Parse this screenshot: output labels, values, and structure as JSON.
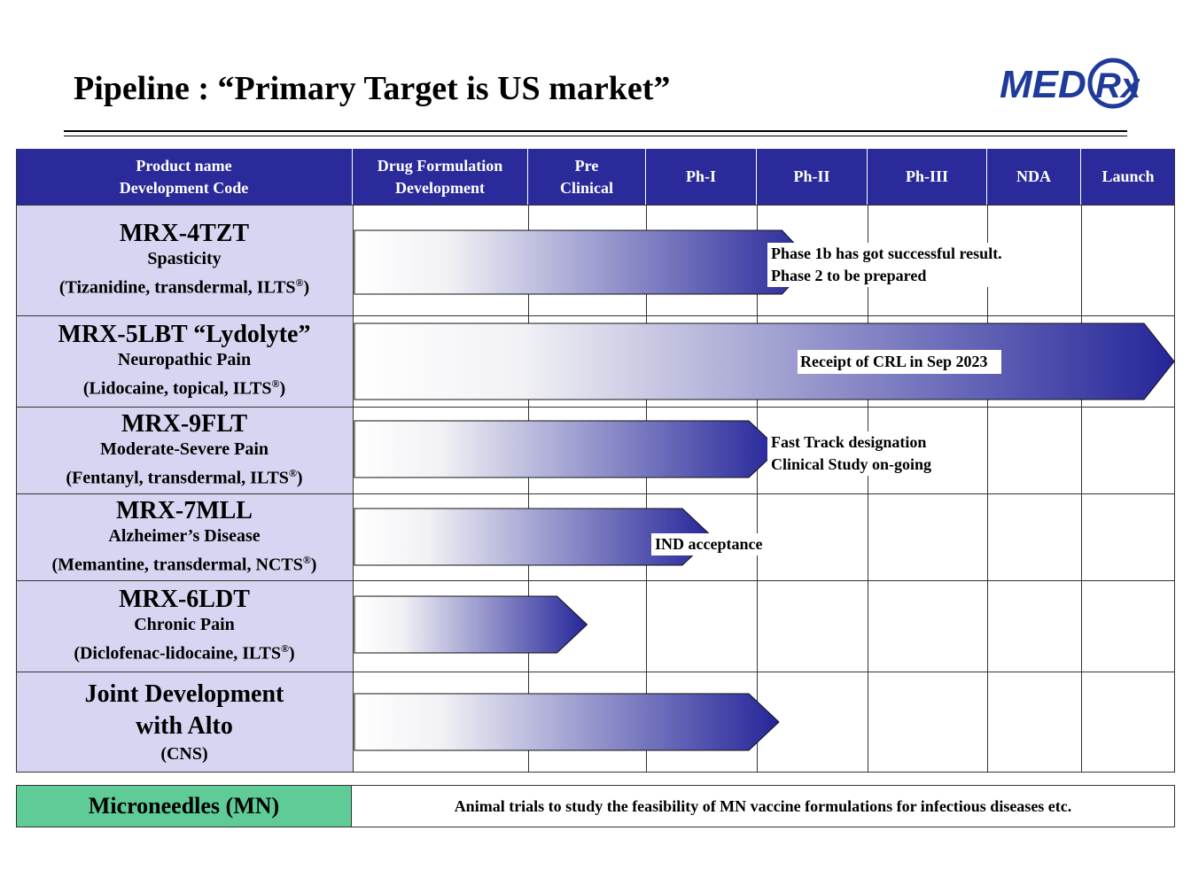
{
  "title": "Pipeline : “Primary Target is US market”",
  "logo": {
    "text": "MED",
    "rx": "Rx",
    "color": "#1f3a9a"
  },
  "headers": {
    "product": [
      "Product name",
      "Development Code"
    ],
    "drug_formulation": [
      "Drug  Formulation",
      "Development"
    ],
    "pre_clinical": [
      "Pre",
      "Clinical"
    ],
    "ph1": "Ph-I",
    "ph2": "Ph-II",
    "ph3": "Ph-III",
    "nda": "NDA",
    "launch": "Launch"
  },
  "products": [
    {
      "name": "MRX-4TZT",
      "indication": "Spasticity",
      "drug": "(Tizanidine,  transdermal, ILTS",
      "reg": "®",
      "close": ")",
      "progress_stage": 3.5,
      "notes": [
        "Phase 1b has got successful result.",
        "Phase 2 to be prepared"
      ]
    },
    {
      "name": "MRX-5LBT “Lydolyte”",
      "indication": "Neuropathic Pain",
      "drug": "(Lidocaine, topical, ILTS",
      "reg": "®",
      "close": ")",
      "progress_stage": 7,
      "notes": [
        "Receipt of CRL in Sep 2023"
      ]
    },
    {
      "name": "MRX-9FLT",
      "indication": "Moderate-Severe Pain",
      "drug": "(Fentanyl, transdermal, ILTS",
      "reg": "®",
      "close": ")",
      "progress_stage": 3.2,
      "notes": [
        "Fast Track  designation",
        "Clinical  Study  on-going"
      ]
    },
    {
      "name": "MRX-7MLL",
      "indication": "Alzheimer’s Disease",
      "drug": "(Memantine, transdermal, NCTS",
      "reg": "®",
      "close": ")",
      "progress_stage": 2.6,
      "notes": [
        "IND acceptance"
      ]
    },
    {
      "name": "MRX-6LDT",
      "indication": "Chronic Pain",
      "drug": "(Diclofenac-lidocaine, ILTS",
      "reg": "®",
      "close": ")",
      "progress_stage": 1.5,
      "notes": []
    },
    {
      "name": "Joint Development",
      "name2": "with Alto",
      "indication": "(CNS)",
      "progress_stage": 3.2,
      "notes": []
    }
  ],
  "microneedles": {
    "label": "Microneedles (MN)",
    "text": "Animal trials to study the feasibility of MN vaccine formulations for infectious diseases etc.",
    "color": "#5fcb97"
  },
  "colors": {
    "header_bg": "#2a2a9a",
    "name_bg": "#d6d6f2",
    "arrow_end": "#25259a"
  }
}
